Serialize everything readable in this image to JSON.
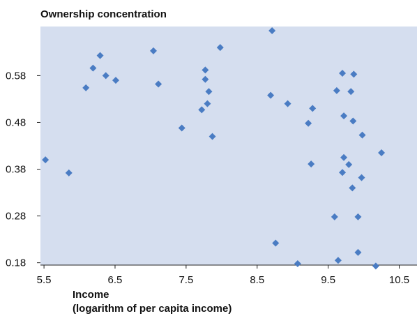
{
  "chart_data": {
    "type": "scatter",
    "title": "Ownership concentration",
    "xlabel_lines": [
      "Income",
      "(logarithm of per capita income)"
    ],
    "ylabel": "",
    "xlim": [
      5.45,
      10.75
    ],
    "ylim": [
      0.175,
      0.685
    ],
    "xticks": [
      5.5,
      6.5,
      7.5,
      8.5,
      9.5,
      10.5
    ],
    "xtick_labels": [
      "5.5",
      "6.5",
      "7.5",
      "8.5",
      "9.5",
      "10.5"
    ],
    "yticks": [
      0.18,
      0.28,
      0.38,
      0.48,
      0.58
    ],
    "ytick_labels": [
      "0.18",
      "0.28",
      "0.38",
      "0.48",
      "0.58"
    ],
    "grid": false,
    "background_color": "#d5deef",
    "point_color": "#4a7cc3",
    "series": [
      {
        "points": [
          {
            "x": 5.52,
            "y": 0.4
          },
          {
            "x": 5.85,
            "y": 0.372
          },
          {
            "x": 6.09,
            "y": 0.554
          },
          {
            "x": 6.19,
            "y": 0.596
          },
          {
            "x": 6.29,
            "y": 0.623
          },
          {
            "x": 6.37,
            "y": 0.58
          },
          {
            "x": 6.51,
            "y": 0.57
          },
          {
            "x": 7.04,
            "y": 0.633
          },
          {
            "x": 7.11,
            "y": 0.562
          },
          {
            "x": 7.44,
            "y": 0.468
          },
          {
            "x": 7.72,
            "y": 0.507
          },
          {
            "x": 7.77,
            "y": 0.592
          },
          {
            "x": 7.77,
            "y": 0.572
          },
          {
            "x": 7.8,
            "y": 0.52
          },
          {
            "x": 7.82,
            "y": 0.546
          },
          {
            "x": 7.87,
            "y": 0.45
          },
          {
            "x": 7.98,
            "y": 0.64
          },
          {
            "x": 8.69,
            "y": 0.538
          },
          {
            "x": 8.71,
            "y": 0.676
          },
          {
            "x": 8.76,
            "y": 0.222
          },
          {
            "x": 8.93,
            "y": 0.52
          },
          {
            "x": 9.07,
            "y": 0.178
          },
          {
            "x": 9.22,
            "y": 0.478
          },
          {
            "x": 9.26,
            "y": 0.391
          },
          {
            "x": 9.28,
            "y": 0.51
          },
          {
            "x": 9.59,
            "y": 0.278
          },
          {
            "x": 9.62,
            "y": 0.548
          },
          {
            "x": 9.64,
            "y": 0.185
          },
          {
            "x": 9.7,
            "y": 0.585
          },
          {
            "x": 9.7,
            "y": 0.373
          },
          {
            "x": 9.72,
            "y": 0.494
          },
          {
            "x": 9.72,
            "y": 0.405
          },
          {
            "x": 9.79,
            "y": 0.39
          },
          {
            "x": 9.82,
            "y": 0.546
          },
          {
            "x": 9.84,
            "y": 0.34
          },
          {
            "x": 9.85,
            "y": 0.483
          },
          {
            "x": 9.86,
            "y": 0.583
          },
          {
            "x": 9.92,
            "y": 0.278
          },
          {
            "x": 9.92,
            "y": 0.202
          },
          {
            "x": 9.97,
            "y": 0.362
          },
          {
            "x": 9.98,
            "y": 0.453
          },
          {
            "x": 10.17,
            "y": 0.173
          },
          {
            "x": 10.25,
            "y": 0.415
          }
        ]
      }
    ]
  }
}
